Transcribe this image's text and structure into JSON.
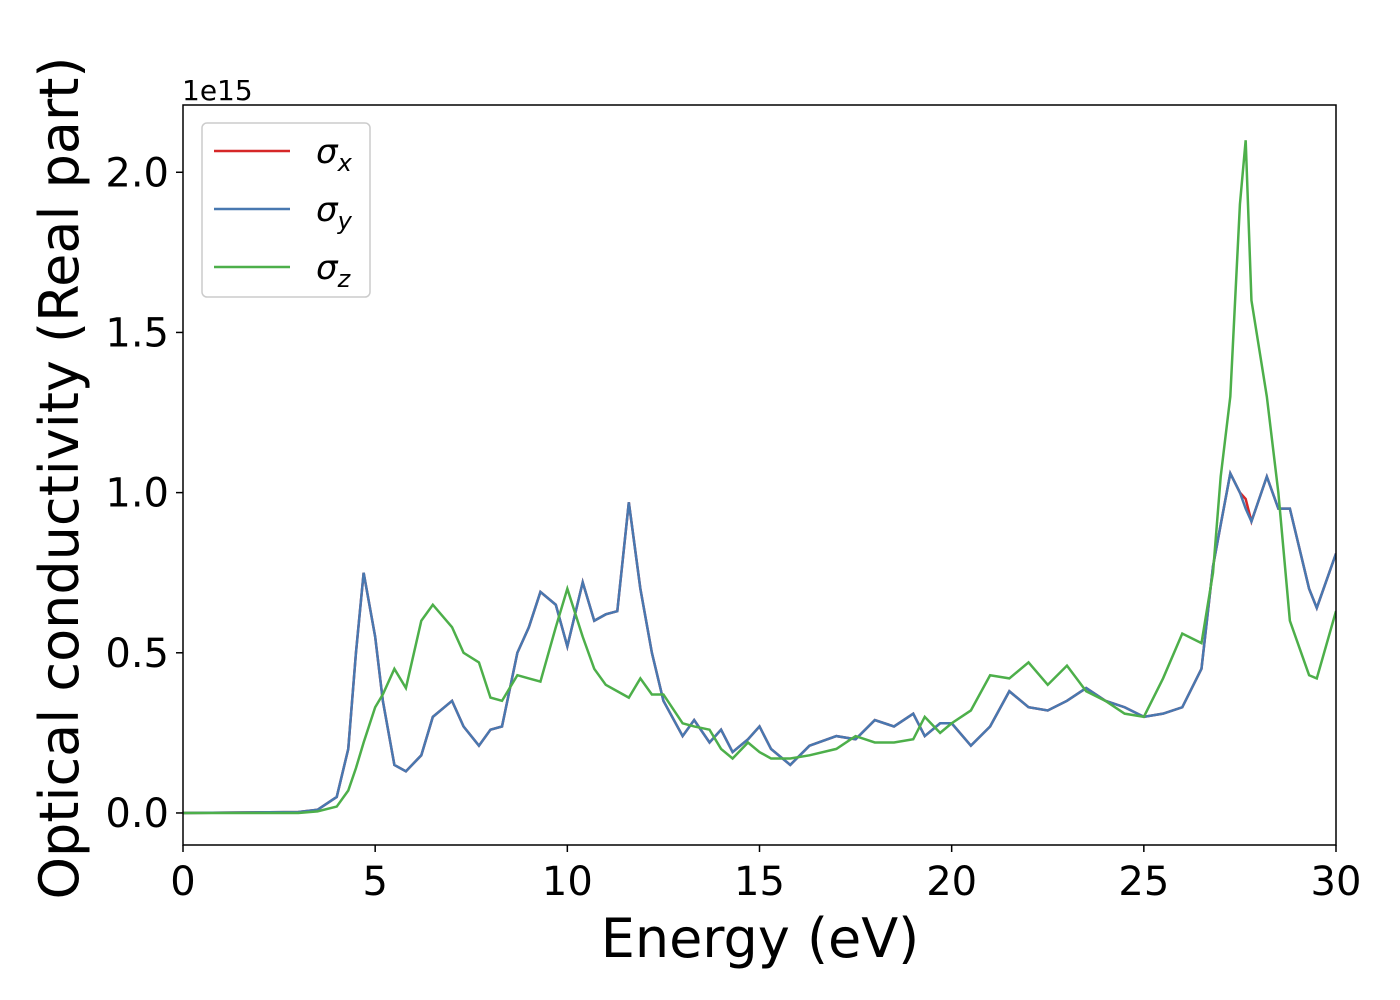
{
  "chart_data": {
    "type": "line",
    "x_label": "Energy (eV)",
    "y_label": "Optical conductivity (Real part)",
    "y_offset_label": "1e15",
    "x": [
      0,
      3,
      3.5,
      4,
      4.3,
      4.5,
      4.7,
      5,
      5.2,
      5.5,
      5.8,
      6.2,
      6.5,
      7,
      7.3,
      7.7,
      8,
      8.3,
      8.7,
      9,
      9.3,
      9.7,
      10,
      10.4,
      10.7,
      11,
      11.3,
      11.6,
      11.9,
      12.2,
      12.5,
      13,
      13.3,
      13.7,
      14,
      14.3,
      14.7,
      15,
      15.3,
      15.8,
      16.3,
      17,
      17.5,
      18,
      18.5,
      19,
      19.3,
      19.7,
      20,
      20.5,
      21,
      21.5,
      22,
      22.5,
      23,
      23.5,
      24,
      24.5,
      25,
      25.5,
      26,
      26.5,
      26.8,
      27,
      27.25,
      27.5,
      27.65,
      27.8,
      28.2,
      28.5,
      28.8,
      29.3,
      29.5,
      30
    ],
    "series": [
      {
        "name": "σx",
        "color": "#d62728",
        "values": [
          0,
          0.003,
          0.01,
          0.05,
          0.2,
          0.5,
          0.75,
          0.55,
          0.35,
          0.15,
          0.13,
          0.18,
          0.3,
          0.35,
          0.27,
          0.21,
          0.26,
          0.27,
          0.5,
          0.58,
          0.69,
          0.65,
          0.52,
          0.72,
          0.6,
          0.62,
          0.63,
          0.97,
          0.7,
          0.5,
          0.35,
          0.24,
          0.29,
          0.22,
          0.26,
          0.19,
          0.23,
          0.27,
          0.2,
          0.15,
          0.21,
          0.24,
          0.23,
          0.29,
          0.27,
          0.31,
          0.24,
          0.28,
          0.28,
          0.21,
          0.27,
          0.38,
          0.33,
          0.32,
          0.35,
          0.39,
          0.35,
          0.33,
          0.3,
          0.31,
          0.33,
          0.45,
          0.77,
          0.9,
          1.06,
          1.0,
          0.98,
          0.91,
          1.05,
          0.95,
          0.95,
          0.7,
          0.64,
          0.81
        ]
      },
      {
        "name": "σy",
        "color": "#4878b0",
        "values": [
          0,
          0.003,
          0.01,
          0.05,
          0.2,
          0.5,
          0.75,
          0.55,
          0.35,
          0.15,
          0.13,
          0.18,
          0.3,
          0.35,
          0.27,
          0.21,
          0.26,
          0.27,
          0.5,
          0.58,
          0.69,
          0.65,
          0.52,
          0.72,
          0.6,
          0.62,
          0.63,
          0.97,
          0.7,
          0.5,
          0.35,
          0.24,
          0.29,
          0.22,
          0.26,
          0.19,
          0.23,
          0.27,
          0.2,
          0.15,
          0.21,
          0.24,
          0.23,
          0.29,
          0.27,
          0.31,
          0.24,
          0.28,
          0.28,
          0.21,
          0.27,
          0.38,
          0.33,
          0.32,
          0.35,
          0.39,
          0.35,
          0.33,
          0.3,
          0.31,
          0.33,
          0.45,
          0.77,
          0.9,
          1.06,
          1.0,
          0.95,
          0.91,
          1.05,
          0.95,
          0.95,
          0.7,
          0.64,
          0.81
        ]
      },
      {
        "name": "σz",
        "color": "#4daf4a",
        "values": [
          0,
          0,
          0.005,
          0.02,
          0.07,
          0.14,
          0.22,
          0.33,
          0.37,
          0.45,
          0.39,
          0.6,
          0.65,
          0.58,
          0.5,
          0.47,
          0.36,
          0.35,
          0.43,
          0.42,
          0.41,
          0.58,
          0.7,
          0.55,
          0.45,
          0.4,
          0.38,
          0.36,
          0.42,
          0.37,
          0.37,
          0.28,
          0.27,
          0.26,
          0.2,
          0.17,
          0.22,
          0.19,
          0.17,
          0.17,
          0.18,
          0.2,
          0.24,
          0.22,
          0.22,
          0.23,
          0.3,
          0.25,
          0.28,
          0.32,
          0.43,
          0.42,
          0.47,
          0.4,
          0.46,
          0.38,
          0.35,
          0.31,
          0.3,
          0.42,
          0.56,
          0.53,
          0.75,
          1.05,
          1.3,
          1.9,
          2.1,
          1.6,
          1.3,
          1.0,
          0.6,
          0.43,
          0.42,
          0.63
        ]
      }
    ],
    "xlim": [
      0,
      30
    ],
    "xticks": [
      0,
      5,
      10,
      15,
      20,
      25,
      30
    ],
    "ylim": [
      -0.1,
      2.21
    ],
    "yticks": [
      {
        "value": 0,
        "label": "0.0"
      },
      {
        "value": 0.5,
        "label": "0.5"
      },
      {
        "value": 1,
        "label": "1.0"
      },
      {
        "value": 1.5,
        "label": "1.5"
      },
      {
        "value": 2,
        "label": "2.0"
      }
    ],
    "grid": false,
    "legend": "upper left"
  }
}
